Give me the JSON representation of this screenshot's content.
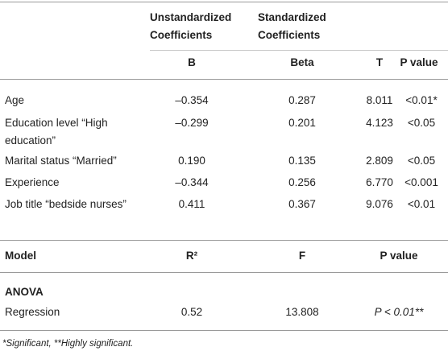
{
  "table": {
    "header": {
      "group_1": "Unstandardized Coefficients",
      "group_2": "Standardized Coefficients",
      "columns": [
        "B",
        "Beta",
        "T",
        "P value"
      ]
    },
    "rows": [
      [
        "Age",
        "–0.354",
        "0.287",
        "8.011",
        "<0.01*"
      ],
      [
        "Education level “High education”",
        "–0.299",
        "0.201",
        "4.123",
        "<0.05"
      ],
      [
        "Marital status “Married”",
        "0.190",
        "0.135",
        "2.809",
        "<0.05"
      ],
      [
        "Experience",
        "–0.344",
        "0.256",
        "6.770",
        "<0.001"
      ],
      [
        "Job title “bedside nurses”",
        "0.411",
        "0.367",
        "9.076",
        "<0.01"
      ]
    ],
    "model_header": [
      "Model",
      "R²",
      "F",
      "P value"
    ],
    "section": "ANOVA",
    "model_row": [
      "Regression",
      "0.52",
      "13.808",
      "P < 0.01**"
    ],
    "footnote": "*Significant, **Highly significant."
  }
}
